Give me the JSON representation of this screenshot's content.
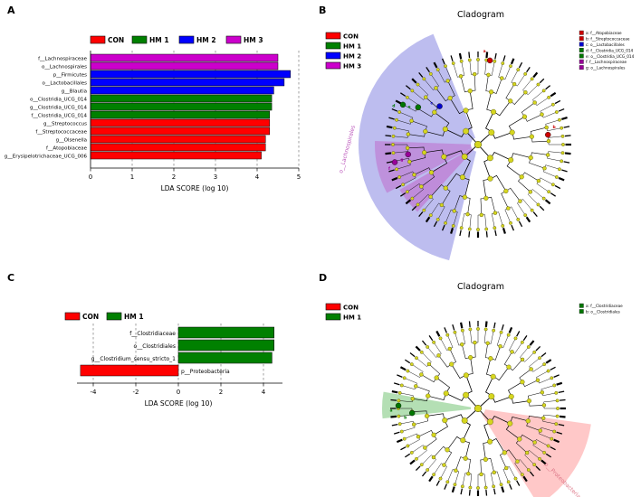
{
  "colors": {
    "con": "#ff0000",
    "hm1": "#008000",
    "hm2": "#0000ff",
    "hm3": "#cc00cc",
    "node": "#d6d61f"
  },
  "chart_data": [
    {
      "type": "bar",
      "panel": "A",
      "orientation": "horizontal",
      "xlabel": "LDA SCORE (log 10)",
      "xlim": [
        0,
        5
      ],
      "xticks": [
        "0",
        "1",
        "2",
        "3",
        "4",
        "5"
      ],
      "grid": "dashed-vertical",
      "legend_position": "top",
      "groups": [
        {
          "label": "CON",
          "color": "#ff0000"
        },
        {
          "label": "HM 1",
          "color": "#008000"
        },
        {
          "label": "HM 2",
          "color": "#0000ff"
        },
        {
          "label": "HM 3",
          "color": "#cc00cc"
        }
      ],
      "bars": [
        {
          "taxon": "f__Lachnospiraceae",
          "group": "HM 3",
          "value": 4.5
        },
        {
          "taxon": "o__Lachnospirales",
          "group": "HM 3",
          "value": 4.5
        },
        {
          "taxon": "p__Firmicutes",
          "group": "HM 2",
          "value": 4.8
        },
        {
          "taxon": "o__Lactobacillales",
          "group": "HM 2",
          "value": 4.65
        },
        {
          "taxon": "g__Blautia",
          "group": "HM 2",
          "value": 4.4
        },
        {
          "taxon": "o__Clostridia_UCG_014",
          "group": "HM 1",
          "value": 4.35
        },
        {
          "taxon": "g__Clostridia_UCG_014",
          "group": "HM 1",
          "value": 4.35
        },
        {
          "taxon": "f__Clostridia_UCG_014",
          "group": "HM 1",
          "value": 4.3
        },
        {
          "taxon": "g__Streptococcus",
          "group": "CON",
          "value": 4.3
        },
        {
          "taxon": "f__Streptococcaceae",
          "group": "CON",
          "value": 4.3
        },
        {
          "taxon": "g__Olsenella",
          "group": "CON",
          "value": 4.2
        },
        {
          "taxon": "f__Atopobiaceae",
          "group": "CON",
          "value": 4.2
        },
        {
          "taxon": "g__Erysipelotrichaceae_UCG_006",
          "group": "CON",
          "value": 4.1
        }
      ]
    },
    {
      "type": "bar",
      "panel": "C",
      "orientation": "horizontal",
      "xlabel": "LDA SCORE (log 10)",
      "xlim": [
        -5,
        5
      ],
      "xticks": [
        "-4",
        "-2",
        "0",
        "2",
        "4"
      ],
      "grid": "dashed-vertical",
      "legend_position": "top",
      "groups": [
        {
          "label": "CON",
          "color": "#ff0000"
        },
        {
          "label": "HM 1",
          "color": "#008000"
        }
      ],
      "bars": [
        {
          "taxon": "f__Clostridiaceae",
          "group": "HM 1",
          "value": 4.5
        },
        {
          "taxon": "o__Clostridiales",
          "group": "HM 1",
          "value": 4.5
        },
        {
          "taxon": "g__Clostridium_sensu_stricto_1",
          "group": "HM 1",
          "value": 4.4
        },
        {
          "taxon": "p__Proteobacteria",
          "group": "CON",
          "value": -4.6
        }
      ]
    }
  ],
  "panelA": {
    "label": "A"
  },
  "panelB": {
    "label": "B",
    "title": "Cladogram",
    "legend": [
      {
        "label": "CON",
        "color": "#ff0000"
      },
      {
        "label": "HM 1",
        "color": "#008000"
      },
      {
        "label": "HM 2",
        "color": "#0000ff"
      },
      {
        "label": "HM 3",
        "color": "#cc00cc"
      }
    ],
    "taxa_legend": [
      {
        "key": "a",
        "label": "f__Atopobiaceae",
        "color": "#cc0000"
      },
      {
        "key": "b",
        "label": "f__Streptococcaceae",
        "color": "#cc0000"
      },
      {
        "key": "c",
        "label": "o__Lactobacillales",
        "color": "#0000cc"
      },
      {
        "key": "d",
        "label": "f__Clostridia_UCG_014",
        "color": "#007700"
      },
      {
        "key": "e",
        "label": "o__Clostridia_UCG_014",
        "color": "#007700"
      },
      {
        "key": "f",
        "label": "f__Lachnospiraceae",
        "color": "#990099"
      },
      {
        "key": "g",
        "label": "o__Lachnospirales",
        "color": "#990099"
      }
    ],
    "wedge_label": {
      "text": "o__Lachnospirales",
      "color": "#bb55bb"
    }
  },
  "panelC": {
    "label": "C"
  },
  "panelD": {
    "label": "D",
    "title": "Cladogram",
    "legend": [
      {
        "label": "CON",
        "color": "#ff0000"
      },
      {
        "label": "HM 1",
        "color": "#008000"
      }
    ],
    "taxa_legend": [
      {
        "key": "a",
        "label": "f__Clostridiaceae",
        "color": "#007700"
      },
      {
        "key": "b",
        "label": "o__Clostridiales",
        "color": "#007700"
      }
    ],
    "wedge_label": {
      "text": "p__Proteobacteria",
      "color": "#dd7788"
    }
  }
}
